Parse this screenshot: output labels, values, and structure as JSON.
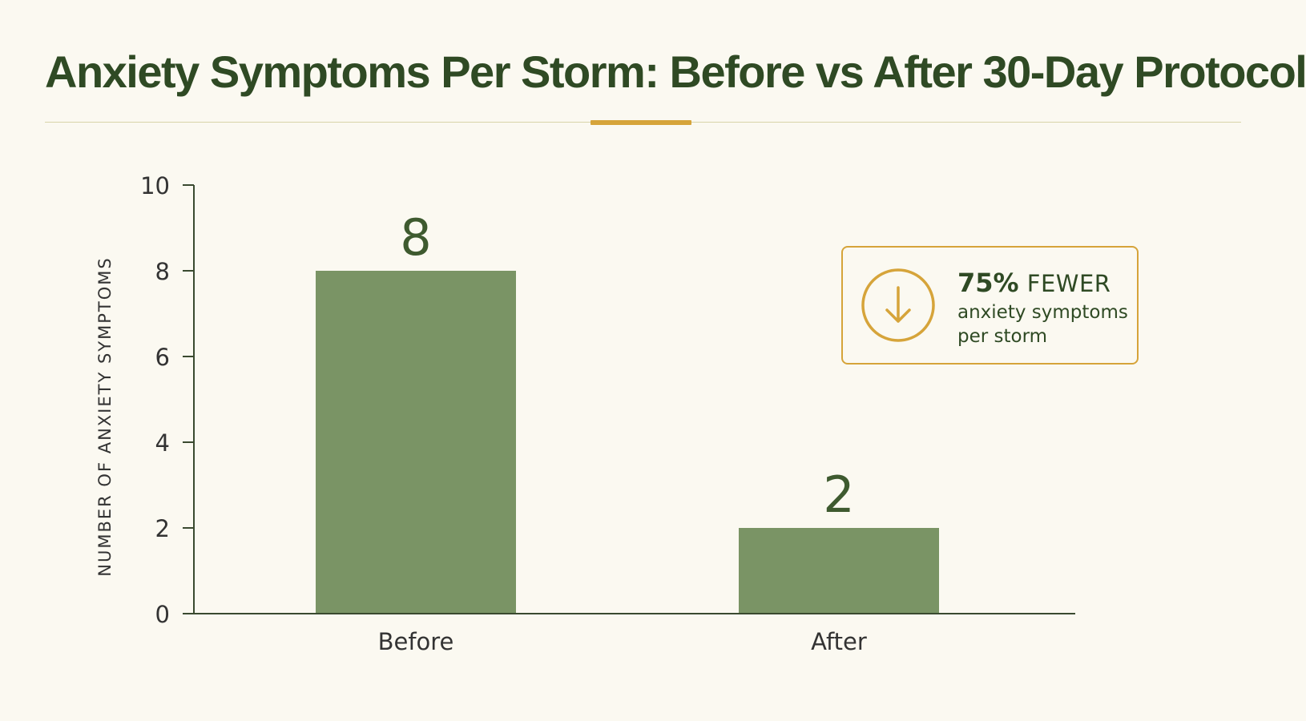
{
  "colors": {
    "background": "#fbf9f1",
    "title": "#2f4a24",
    "bar": "#7a9465",
    "value_label": "#3e5a2f",
    "axis": "#3a4a30",
    "tick_text": "#333333",
    "accent": "#d6a43a",
    "rule": "#d8d4a8"
  },
  "chart_data": {
    "type": "bar",
    "title": "Anxiety Symptoms Per Storm: Before vs After 30-Day Protocol",
    "xlabel": "",
    "ylabel": "NUMBER OF ANXIETY SYMPTOMS",
    "categories": [
      "Before",
      "After"
    ],
    "values": [
      8,
      2
    ],
    "data_labels": [
      "8",
      "2"
    ],
    "ylim": [
      0,
      10
    ],
    "yticks": [
      "0",
      "2",
      "4",
      "6",
      "8",
      "10"
    ],
    "grid": false,
    "legend": "none"
  },
  "callout": {
    "icon": "arrow-down-circle-icon",
    "figure": "75%",
    "word": "FEWER",
    "subtext": "anxiety symptoms per storm"
  }
}
